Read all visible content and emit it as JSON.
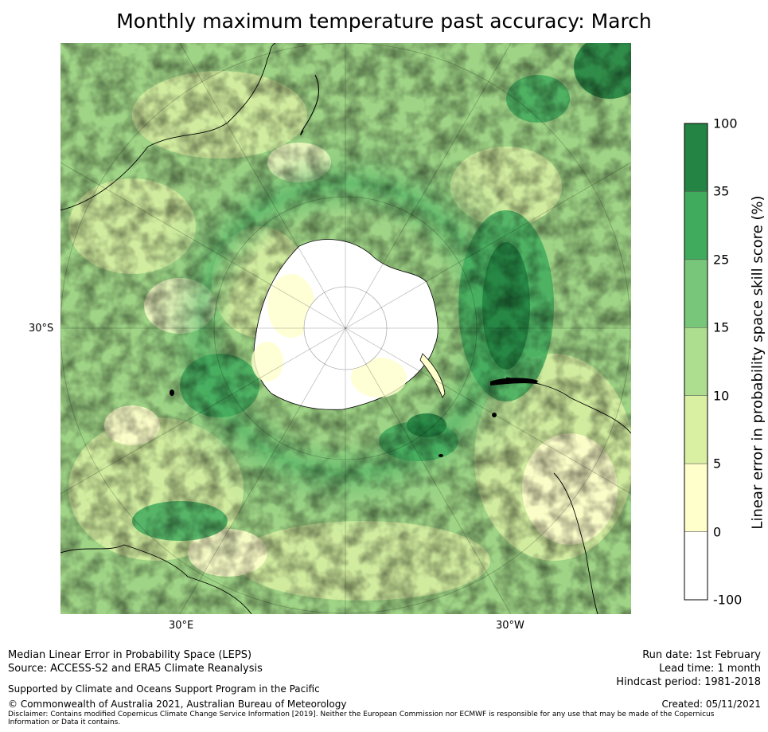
{
  "title": "Monthly maximum temperature past accuracy: March",
  "map": {
    "projection": "south polar stereographic",
    "lat_label": "30°S",
    "lon_labels": [
      "30°E",
      "30°W"
    ]
  },
  "colorbar": {
    "label": "Linear error in probability space skill score (%)",
    "levels": [
      "100",
      "35",
      "25",
      "15",
      "10",
      "5",
      "0",
      "-100"
    ],
    "colors": [
      "#238443",
      "#41ab5d",
      "#78c679",
      "#addd8e",
      "#d9f0a3",
      "#ffffcc",
      "#ffffff"
    ]
  },
  "footer": {
    "line1": "Median Linear Error in Probability Space (LEPS)",
    "line2": "Source: ACCESS-S2 and ERA5 Climate Reanalysis",
    "support": "Supported by Climate and Oceans Support Program in the Pacific",
    "copyright": "© Commonwealth of Australia 2021, Australian Bureau of Meteorology",
    "disclaimer": "Disclaimer: Contains modified Copernicus Climate Change Service Information [2019]. Neither the European Commission nor ECMWF is responsible for any use that may be made of the Copernicus Information or Data it contains.",
    "run_date": "Run date: 1st February",
    "lead_time": "Lead time: 1 month",
    "hindcast": "Hindcast period: 1981-2018",
    "created": "Created: 05/11/2021"
  }
}
